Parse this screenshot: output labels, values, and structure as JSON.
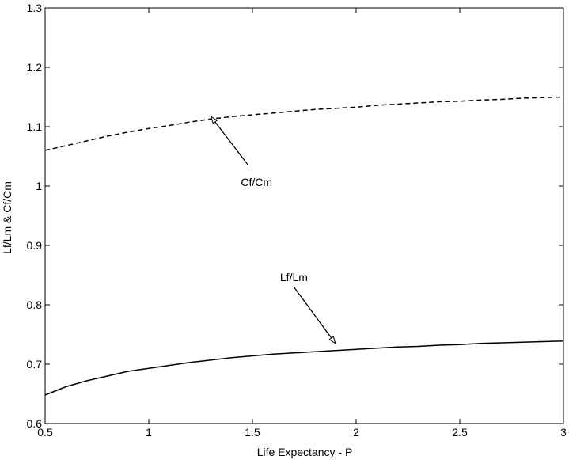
{
  "chart_data": {
    "type": "line",
    "title": "",
    "xlabel": "Life Expectancy - P",
    "ylabel": "Lf/Lm & Cf/Cm",
    "xlim": [
      0.5,
      3
    ],
    "ylim": [
      0.6,
      1.3
    ],
    "x_ticks": [
      "0.5",
      "1",
      "1.5",
      "2",
      "2.5",
      "3"
    ],
    "y_ticks": [
      "0.6",
      "0.7",
      "0.8",
      "0.9",
      "1",
      "1.1",
      "1.2",
      "1.3"
    ],
    "grid": false,
    "series": [
      {
        "name": "Cf/Cm",
        "style": "dashed",
        "color": "#000000",
        "x": [
          0.5,
          0.6,
          0.7,
          0.8,
          0.9,
          1.0,
          1.1,
          1.2,
          1.3,
          1.4,
          1.5,
          1.6,
          1.7,
          1.8,
          1.9,
          2.0,
          2.1,
          2.2,
          2.3,
          2.4,
          2.5,
          2.6,
          2.7,
          2.8,
          2.9,
          3.0
        ],
        "values": [
          1.06,
          1.068,
          1.076,
          1.084,
          1.091,
          1.097,
          1.102,
          1.108,
          1.113,
          1.117,
          1.12,
          1.123,
          1.126,
          1.129,
          1.131,
          1.133,
          1.136,
          1.138,
          1.14,
          1.142,
          1.143,
          1.145,
          1.146,
          1.148,
          1.149,
          1.15
        ]
      },
      {
        "name": "Lf/Lm",
        "style": "solid",
        "color": "#000000",
        "x": [
          0.5,
          0.6,
          0.7,
          0.8,
          0.9,
          1.0,
          1.1,
          1.2,
          1.3,
          1.4,
          1.5,
          1.6,
          1.7,
          1.8,
          1.9,
          2.0,
          2.1,
          2.2,
          2.3,
          2.4,
          2.5,
          2.6,
          2.7,
          2.8,
          2.9,
          3.0
        ],
        "values": [
          0.648,
          0.662,
          0.672,
          0.68,
          0.688,
          0.693,
          0.698,
          0.703,
          0.707,
          0.711,
          0.714,
          0.717,
          0.719,
          0.721,
          0.723,
          0.725,
          0.727,
          0.729,
          0.73,
          0.732,
          0.733,
          0.735,
          0.736,
          0.737,
          0.738,
          0.739
        ]
      }
    ],
    "annotations": [
      {
        "text": "Cf/Cm",
        "label_at": [
          1.52,
          1.0
        ],
        "arrow_from": [
          1.48,
          1.035
        ],
        "arrow_to": [
          1.3,
          1.117
        ]
      },
      {
        "text": "Lf/Lm",
        "label_at": [
          1.7,
          0.84
        ],
        "arrow_from": [
          1.7,
          0.83
        ],
        "arrow_to": [
          1.9,
          0.735
        ]
      }
    ]
  }
}
